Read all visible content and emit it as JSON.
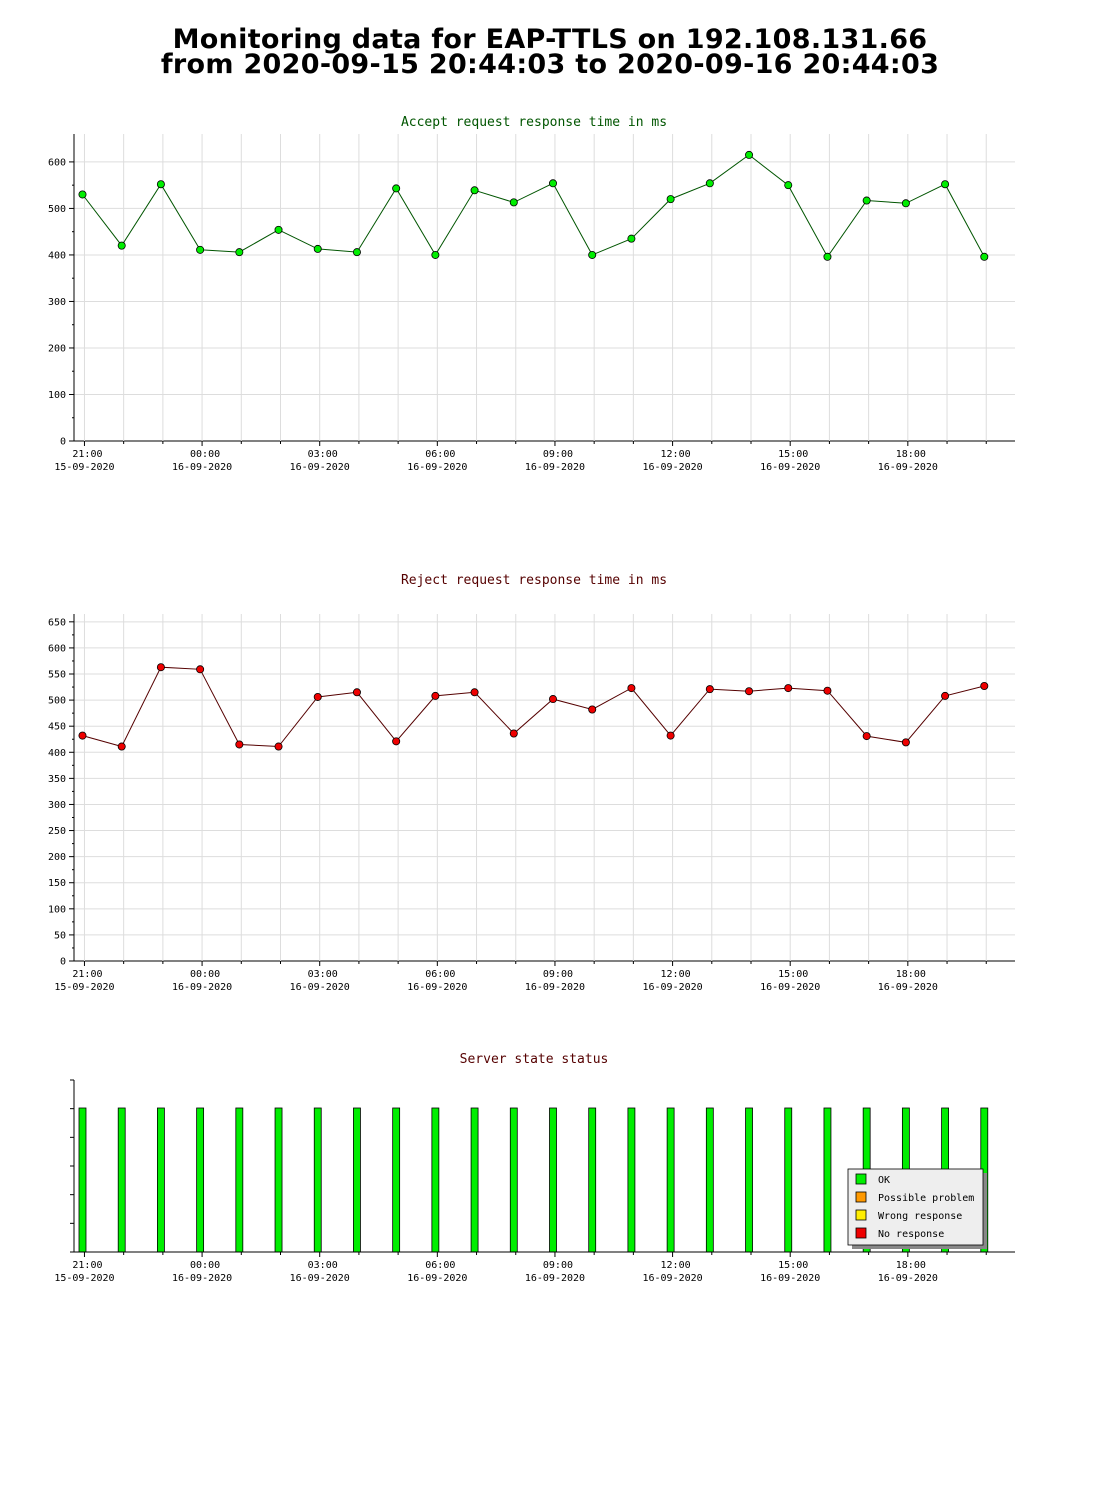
{
  "page": {
    "title_line1": "Monitoring data for EAP-TTLS on 192.108.131.66",
    "title_line2": "from 2020-09-15 20:44:03 to 2020-09-16 20:44:03"
  },
  "colors": {
    "accept_line": "#005500",
    "accept_marker": "#00ee00",
    "reject_line": "#550000",
    "reject_marker": "#ee0000",
    "ok": "#00ee00",
    "possible_problem": "#ff9900",
    "wrong_response": "#ffee00",
    "no_response": "#ee0000",
    "grid": "#dddddd"
  },
  "x_ticks": [
    {
      "time": "21:00",
      "date": "15-09-2020"
    },
    {
      "time": "00:00",
      "date": "16-09-2020"
    },
    {
      "time": "03:00",
      "date": "16-09-2020"
    },
    {
      "time": "06:00",
      "date": "16-09-2020"
    },
    {
      "time": "09:00",
      "date": "16-09-2020"
    },
    {
      "time": "12:00",
      "date": "16-09-2020"
    },
    {
      "time": "15:00",
      "date": "16-09-2020"
    },
    {
      "time": "18:00",
      "date": "16-09-2020"
    }
  ],
  "chart_data": [
    {
      "type": "line",
      "title": "Accept request response time in ms",
      "x": [
        "2020-09-15 20:57",
        "2020-09-15 21:57",
        "2020-09-15 22:57",
        "2020-09-15 23:57",
        "2020-09-16 00:57",
        "2020-09-16 01:57",
        "2020-09-16 02:57",
        "2020-09-16 03:57",
        "2020-09-16 04:57",
        "2020-09-16 05:57",
        "2020-09-16 06:57",
        "2020-09-16 07:57",
        "2020-09-16 08:57",
        "2020-09-16 09:57",
        "2020-09-16 10:57",
        "2020-09-16 11:57",
        "2020-09-16 12:57",
        "2020-09-16 13:57",
        "2020-09-16 14:57",
        "2020-09-16 15:57",
        "2020-09-16 16:57",
        "2020-09-16 17:57",
        "2020-09-16 18:57",
        "2020-09-16 19:57"
      ],
      "values": [
        530,
        420,
        552,
        411,
        406,
        454,
        413,
        406,
        543,
        400,
        539,
        513,
        554,
        400,
        435,
        520,
        554,
        615,
        550,
        396,
        517,
        511,
        552,
        396
      ],
      "y_ticks": [
        0,
        100,
        200,
        300,
        400,
        500,
        600
      ],
      "ylim": [
        0,
        660
      ],
      "grid": true
    },
    {
      "type": "line",
      "title": "Reject request response time in ms",
      "x": [
        "2020-09-15 20:57",
        "2020-09-15 21:57",
        "2020-09-15 22:57",
        "2020-09-15 23:57",
        "2020-09-16 00:57",
        "2020-09-16 01:57",
        "2020-09-16 02:57",
        "2020-09-16 03:57",
        "2020-09-16 04:57",
        "2020-09-16 05:57",
        "2020-09-16 06:57",
        "2020-09-16 07:57",
        "2020-09-16 08:57",
        "2020-09-16 09:57",
        "2020-09-16 10:57",
        "2020-09-16 11:57",
        "2020-09-16 12:57",
        "2020-09-16 13:57",
        "2020-09-16 14:57",
        "2020-09-16 15:57",
        "2020-09-16 16:57",
        "2020-09-16 17:57",
        "2020-09-16 18:57",
        "2020-09-16 19:57"
      ],
      "values": [
        432,
        411,
        563,
        559,
        415,
        411,
        506,
        515,
        421,
        508,
        515,
        436,
        502,
        482,
        523,
        432,
        521,
        517,
        523,
        518,
        431,
        419,
        508,
        527
      ],
      "y_ticks": [
        0,
        50,
        100,
        150,
        200,
        250,
        300,
        350,
        400,
        450,
        500,
        550,
        600,
        650
      ],
      "ylim": [
        0,
        665
      ],
      "grid": true
    },
    {
      "type": "bar",
      "title": "Server state status",
      "x": [
        "2020-09-15 20:57",
        "2020-09-15 21:57",
        "2020-09-15 22:57",
        "2020-09-15 23:57",
        "2020-09-16 00:57",
        "2020-09-16 01:57",
        "2020-09-16 02:57",
        "2020-09-16 03:57",
        "2020-09-16 04:57",
        "2020-09-16 05:57",
        "2020-09-16 06:57",
        "2020-09-16 07:57",
        "2020-09-16 08:57",
        "2020-09-16 09:57",
        "2020-09-16 10:57",
        "2020-09-16 11:57",
        "2020-09-16 12:57",
        "2020-09-16 13:57",
        "2020-09-16 14:57",
        "2020-09-16 15:57",
        "2020-09-16 16:57",
        "2020-09-16 17:57",
        "2020-09-16 18:57",
        "2020-09-16 19:57"
      ],
      "status": [
        "OK",
        "OK",
        "OK",
        "OK",
        "OK",
        "OK",
        "OK",
        "OK",
        "OK",
        "OK",
        "OK",
        "OK",
        "OK",
        "OK",
        "OK",
        "OK",
        "OK",
        "OK",
        "OK",
        "OK",
        "OK",
        "OK",
        "OK",
        "OK"
      ],
      "legend": [
        "OK",
        "Possible problem",
        "Wrong response",
        "No response"
      ],
      "legend_position": "bottom-right",
      "grid": false
    }
  ]
}
